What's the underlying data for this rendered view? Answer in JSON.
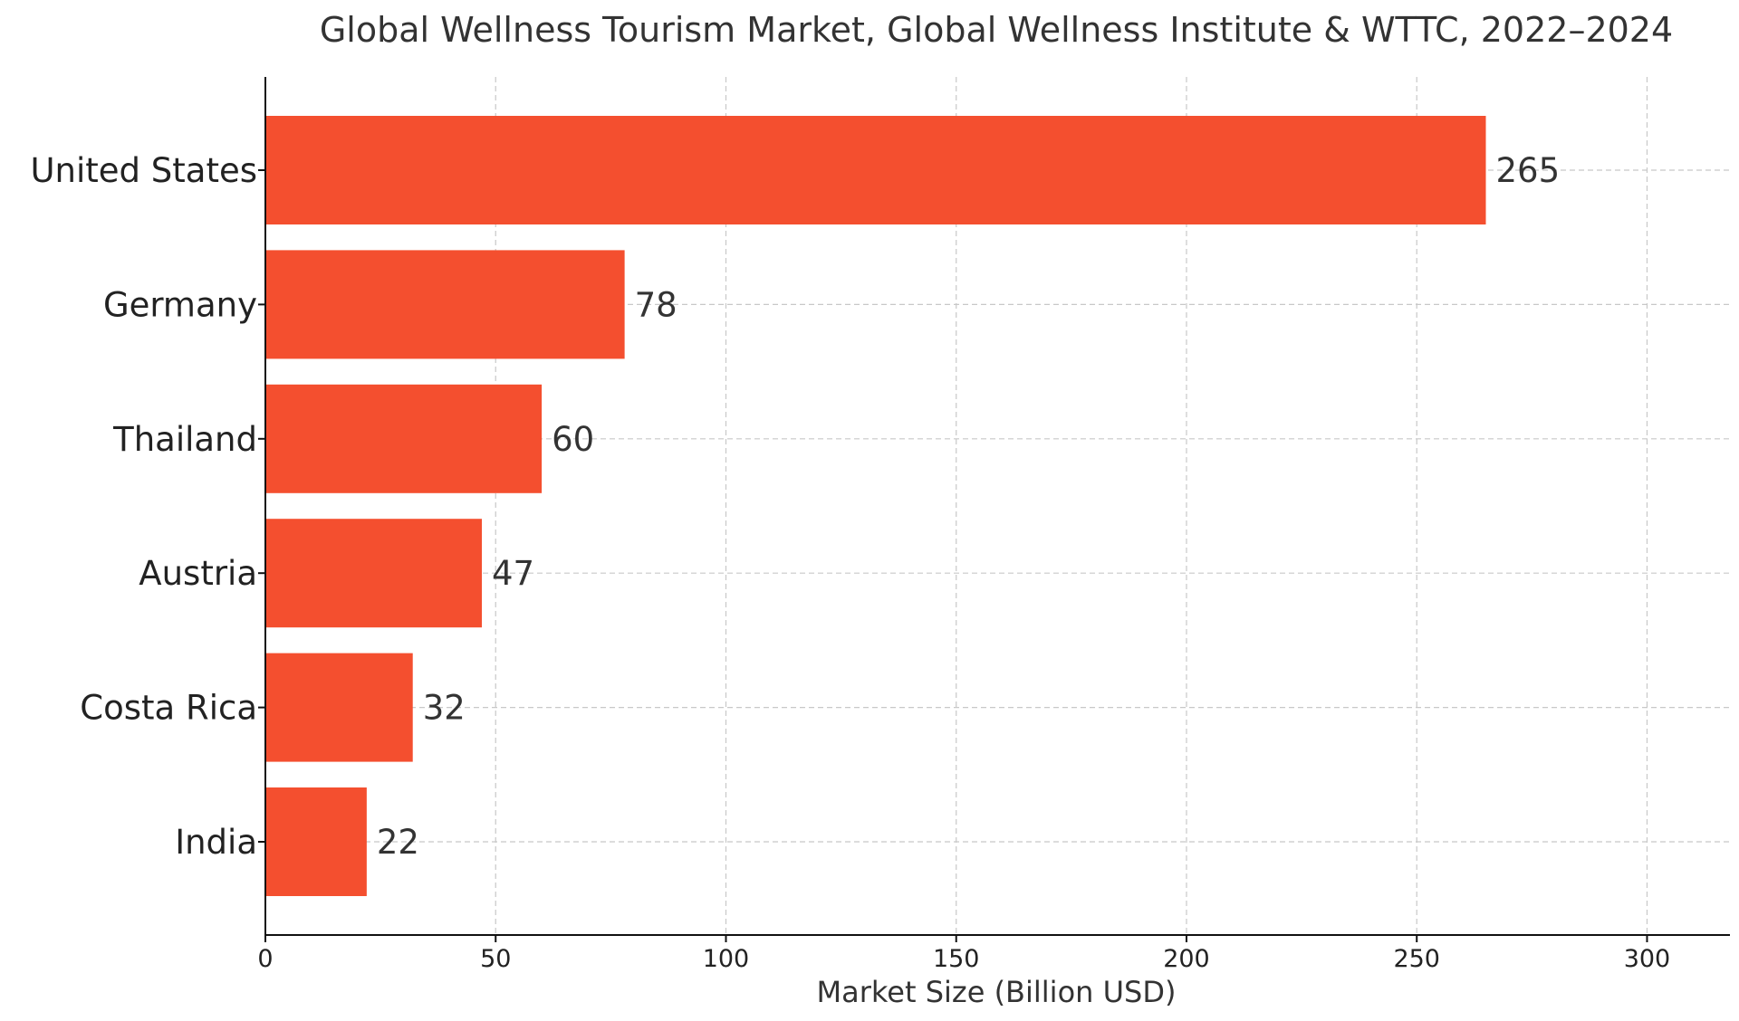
{
  "chart_data": {
    "type": "bar",
    "orientation": "horizontal",
    "title": "Global Wellness Tourism Market, Global Wellness Institute & WTTC, 2022–2024",
    "xlabel": "Market Size (Billion USD)",
    "ylabel": "",
    "categories": [
      "United States",
      "Germany",
      "Thailand",
      "Austria",
      "Costa Rica",
      "India"
    ],
    "values": [
      265,
      78,
      60,
      47,
      32,
      22
    ],
    "value_labels": [
      "265",
      "78",
      "60",
      "47",
      "32",
      "22"
    ],
    "xlim": [
      0,
      318
    ],
    "x_ticks": [
      0,
      50,
      100,
      150,
      200,
      250,
      300
    ],
    "x_tick_labels": [
      "0",
      "50",
      "100",
      "150",
      "200",
      "250",
      "300"
    ],
    "grid": true,
    "bar_color": "#F44F2F"
  }
}
